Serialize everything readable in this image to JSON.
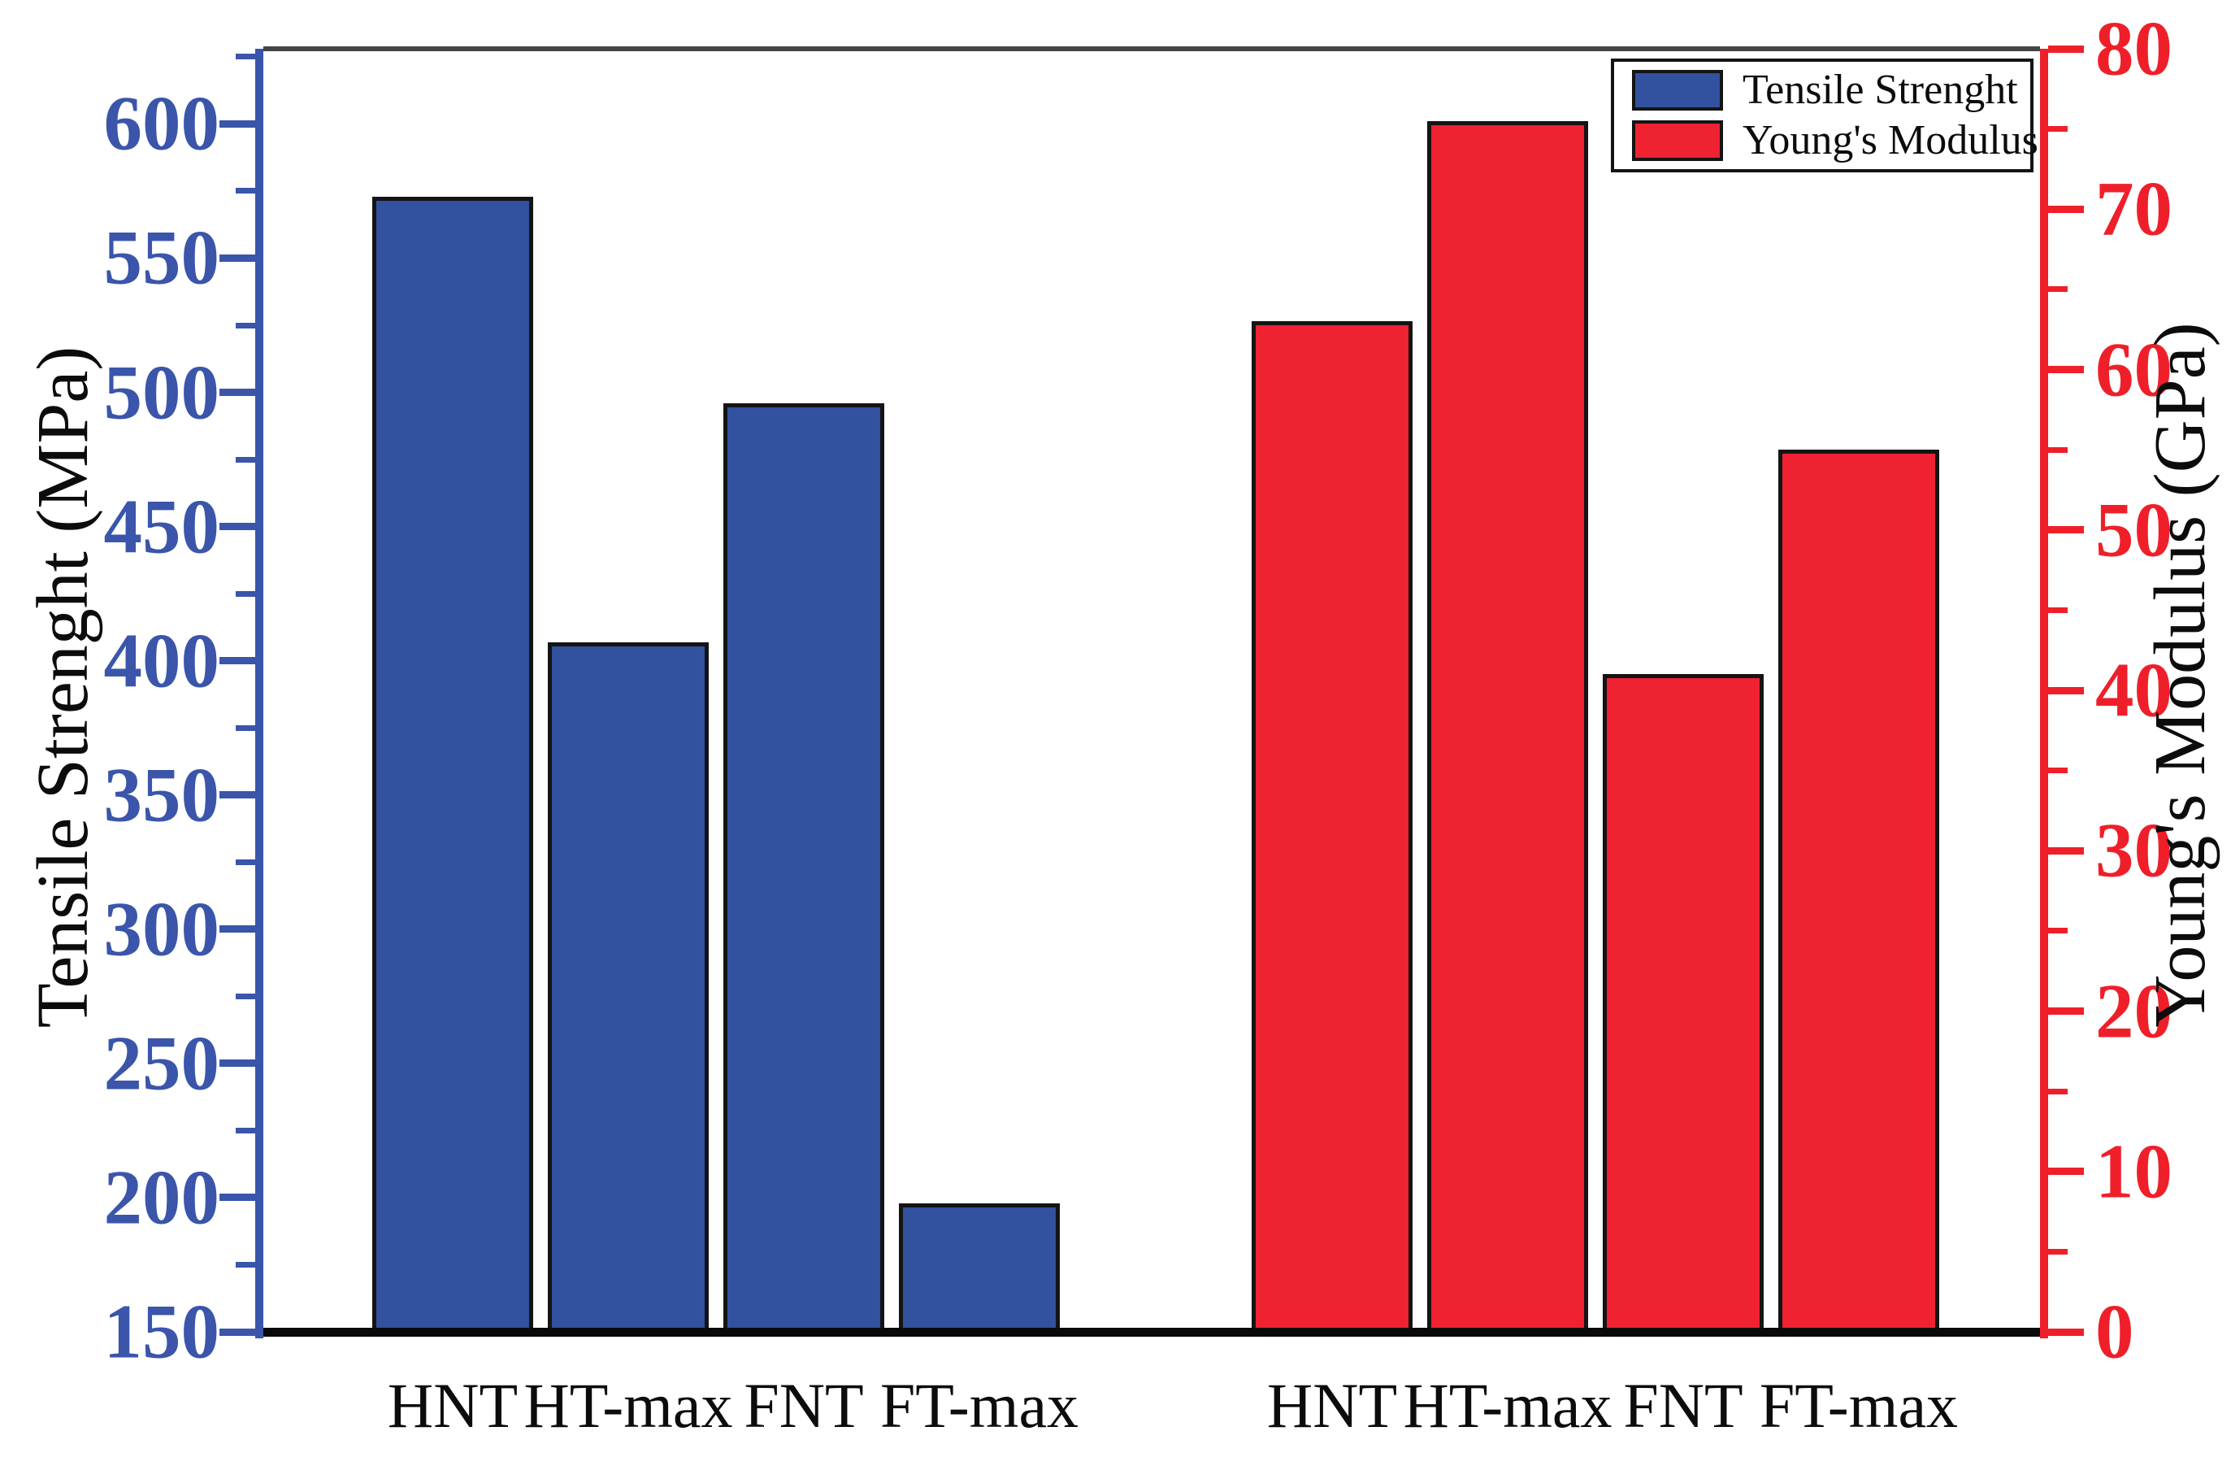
{
  "chart_data": {
    "type": "bar",
    "title": "",
    "categories": [
      "HNT",
      "HT-max",
      "FNT",
      "FT-max"
    ],
    "series": [
      {
        "name": "Tensile Strenght",
        "axis": "left",
        "unit": "MPa",
        "color": "#32519E",
        "values": [
          573,
          407,
          496,
          198
        ]
      },
      {
        "name": "Young's Modulus",
        "axis": "right",
        "unit": "GPa",
        "color": "#EE2231",
        "values": [
          63,
          75.5,
          41,
          55
        ]
      }
    ],
    "axes": {
      "left": {
        "label": "Tensile Strenght (MPa)",
        "color": "#3A55AA",
        "range": [
          150,
          628
        ],
        "major_ticks": [
          600,
          550,
          500,
          450,
          400,
          350,
          300,
          250,
          200,
          150
        ],
        "minor_ticks": [
          625,
          575,
          525,
          475,
          425,
          375,
          325,
          275,
          225,
          175
        ]
      },
      "right": {
        "label": "Young's Modulus (GPa)",
        "color": "#EF1F2A",
        "range": [
          0,
          80
        ],
        "major_ticks": [
          80,
          70,
          60,
          50,
          40,
          30,
          20,
          10,
          0
        ],
        "minor_ticks": [
          75,
          65,
          55,
          45,
          35,
          25,
          15,
          5
        ]
      },
      "bottom": {
        "color": "#0a0a0a"
      },
      "top": {
        "color": "#454545"
      }
    },
    "legend": {
      "position": "top-right",
      "items": [
        "Tensile Strenght",
        "Young's Modulus"
      ]
    },
    "grid": false,
    "bar_outline": "#141414",
    "background": "#FFFFFF"
  }
}
